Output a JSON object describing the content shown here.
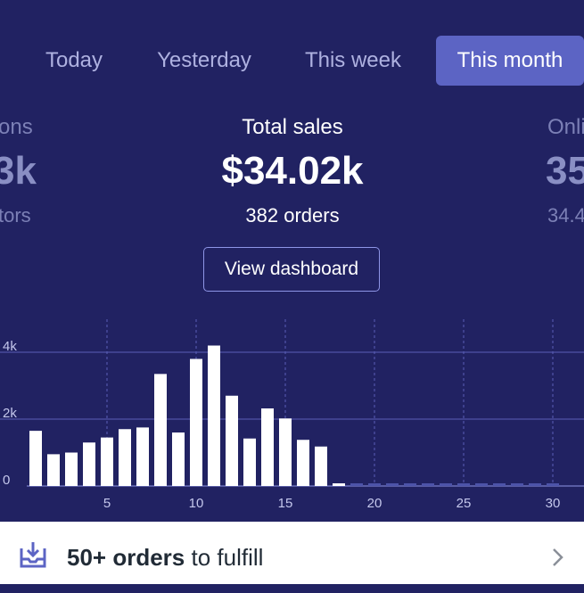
{
  "tabs": [
    {
      "label": "Today"
    },
    {
      "label": "Yesterday"
    },
    {
      "label": "This week"
    },
    {
      "label": "This month",
      "active": true
    }
  ],
  "stats": {
    "left": {
      "label": "ons",
      "value": "3k",
      "sub": "tors"
    },
    "center": {
      "label": "Total sales",
      "value": "$34.02k",
      "sub": "382 orders"
    },
    "right": {
      "label": "Onli",
      "value": "35",
      "sub": "34.4"
    }
  },
  "view_dashboard_label": "View dashboard",
  "chart_data": {
    "type": "bar",
    "x": [
      1,
      2,
      3,
      4,
      5,
      6,
      7,
      8,
      9,
      10,
      11,
      12,
      13,
      14,
      15,
      16,
      17,
      18,
      19,
      20,
      21,
      22,
      23,
      24,
      25,
      26,
      27,
      28,
      29,
      30
    ],
    "values": [
      1650,
      950,
      1000,
      1300,
      1450,
      1700,
      1750,
      3350,
      1600,
      3800,
      4200,
      2700,
      1420,
      2320,
      2020,
      1380,
      1180,
      80,
      0,
      0,
      0,
      0,
      0,
      0,
      0,
      0,
      0,
      0,
      0,
      0
    ],
    "x_ticks": [
      "5",
      "10",
      "15",
      "20",
      "25",
      "30"
    ],
    "y_ticks": [
      "0",
      "2k",
      "4k"
    ],
    "ylim": [
      0,
      4800
    ],
    "bar_color": "#ffffff",
    "grid_color": "#5a5fb8"
  },
  "footer": {
    "bold": "50+ orders",
    "text": " to fulfill"
  },
  "colors": {
    "background": "#212262",
    "active_tab": "#5c64c4",
    "footer_bg": "#ffffff"
  }
}
